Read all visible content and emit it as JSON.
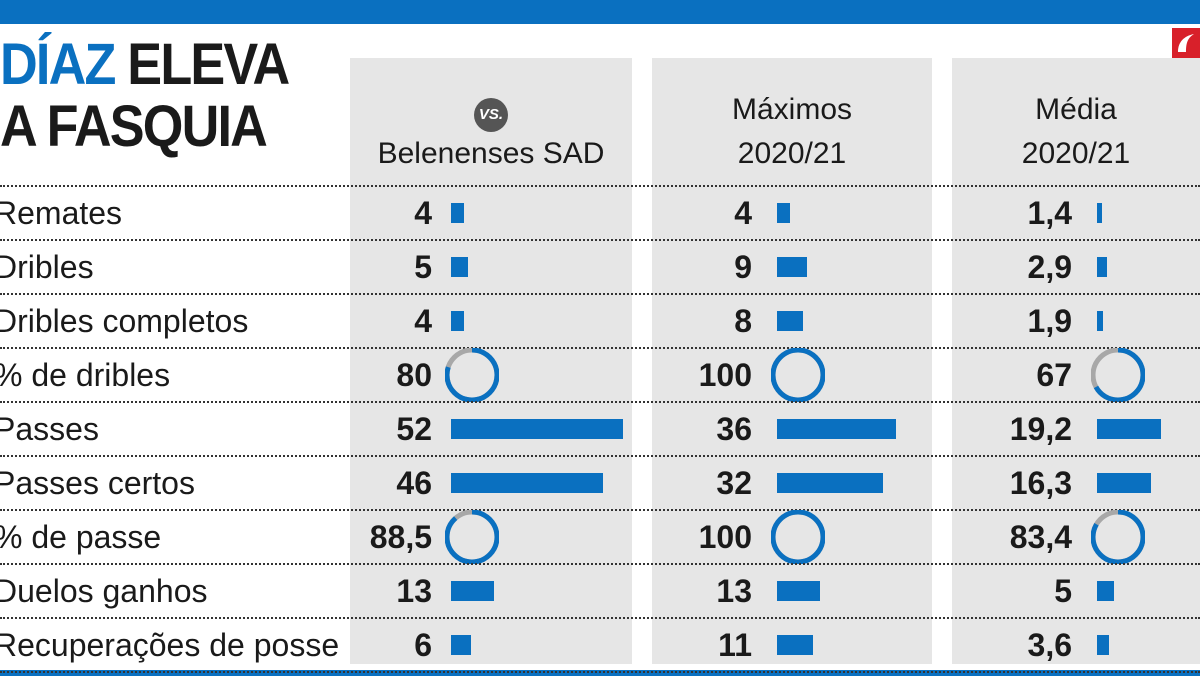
{
  "title": {
    "highlight": "DÍAZ",
    "line1_rest": " ELEVA",
    "line2": "A FASQUIA"
  },
  "columns": [
    {
      "badge": "VS.",
      "label_line1": "",
      "label_line2": "Belenenses SAD"
    },
    {
      "badge": "",
      "label_line1": "Máximos",
      "label_line2": "2020/21"
    },
    {
      "badge": "",
      "label_line1": "Média",
      "label_line2": "2020/21"
    }
  ],
  "colors": {
    "accent": "#0a70c0",
    "ring_remainder": "#a8a8a8",
    "panel": "#e6e6e6"
  },
  "chart_data": {
    "type": "table",
    "categories": [
      "Remates",
      "Dribles",
      "Dribles completos",
      "% de dribles",
      "Passes",
      "Passes certos",
      "% de passe",
      "Duelos ganhos",
      "Recuperações de posse"
    ],
    "row_labels": [
      "Remates",
      "Dribles",
      "Dribles completos",
      "% de dribles",
      "Passes",
      "Passes certos",
      "% de passe",
      "Duelos ganhos",
      "Recuperações de posse"
    ],
    "percent_rows": [
      false,
      false,
      false,
      true,
      false,
      false,
      true,
      false,
      false
    ],
    "series": [
      {
        "name": "vs. Belenenses SAD",
        "values": [
          4,
          5,
          4,
          80,
          52,
          46,
          88.5,
          13,
          6
        ],
        "labels": [
          "4",
          "5",
          "4",
          "80",
          "52",
          "46",
          "88,5",
          "13",
          "6"
        ]
      },
      {
        "name": "Máximos 2020/21",
        "values": [
          4,
          9,
          8,
          100,
          36,
          32,
          100,
          13,
          11
        ],
        "labels": [
          "4",
          "9",
          "8",
          "100",
          "36",
          "32",
          "100",
          "13",
          "11"
        ]
      },
      {
        "name": "Média 2020/21",
        "values": [
          1.4,
          2.9,
          1.9,
          67,
          19.2,
          16.3,
          83.4,
          5,
          3.6
        ],
        "labels": [
          "1,4",
          "2,9",
          "1,9",
          "67",
          "19,2",
          "16,3",
          "83,4",
          "5",
          "3,6"
        ]
      }
    ],
    "bar_max": 52
  }
}
